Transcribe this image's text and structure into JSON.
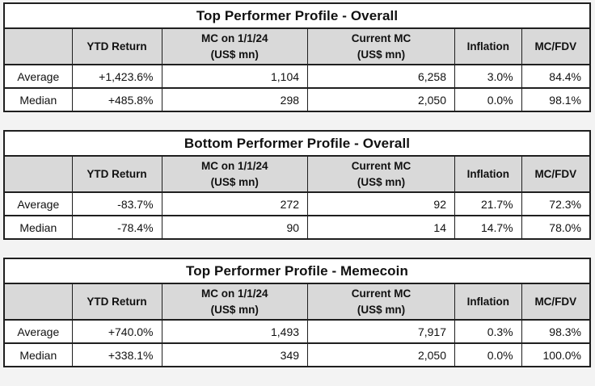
{
  "page": {
    "background_color": "#f3f3f3",
    "table_background": "#ffffff",
    "header_background": "#d9d9d9",
    "border_color": "#1f1f1f",
    "text_color": "#111111"
  },
  "tables": [
    {
      "title": "Top Performer Profile - Overall",
      "columns": [
        {
          "label": ""
        },
        {
          "label": "YTD Return"
        },
        {
          "label": "MC on 1/1/24",
          "sublabel": "(US$ mn)"
        },
        {
          "label": "Current MC",
          "sublabel": "(US$ mn)"
        },
        {
          "label": "Inflation"
        },
        {
          "label": "MC/FDV"
        }
      ],
      "rows": [
        {
          "cells": [
            "Average",
            "+1,423.6%",
            "1,104",
            "6,258",
            "3.0%",
            "84.4%"
          ]
        },
        {
          "cells": [
            "Median",
            "+485.8%",
            "298",
            "2,050",
            "0.0%",
            "98.1%"
          ]
        }
      ]
    },
    {
      "title": "Bottom Performer Profile - Overall",
      "columns": [
        {
          "label": ""
        },
        {
          "label": "YTD Return"
        },
        {
          "label": "MC on 1/1/24",
          "sublabel": "(US$ mn)"
        },
        {
          "label": "Current MC",
          "sublabel": "(US$ mn)"
        },
        {
          "label": "Inflation"
        },
        {
          "label": "MC/FDV"
        }
      ],
      "rows": [
        {
          "cells": [
            "Average",
            "-83.7%",
            "272",
            "92",
            "21.7%",
            "72.3%"
          ]
        },
        {
          "cells": [
            "Median",
            "-78.4%",
            "90",
            "14",
            "14.7%",
            "78.0%"
          ]
        }
      ]
    },
    {
      "title": "Top Performer Profile - Memecoin",
      "columns": [
        {
          "label": ""
        },
        {
          "label": "YTD Return"
        },
        {
          "label": "MC on 1/1/24",
          "sublabel": "(US$ mn)"
        },
        {
          "label": "Current MC",
          "sublabel": "(US$ mn)"
        },
        {
          "label": "Inflation"
        },
        {
          "label": "MC/FDV"
        }
      ],
      "rows": [
        {
          "cells": [
            "Average",
            "+740.0%",
            "1,493",
            "7,917",
            "0.3%",
            "98.3%"
          ]
        },
        {
          "cells": [
            "Median",
            "+338.1%",
            "349",
            "2,050",
            "0.0%",
            "100.0%"
          ]
        }
      ]
    }
  ]
}
